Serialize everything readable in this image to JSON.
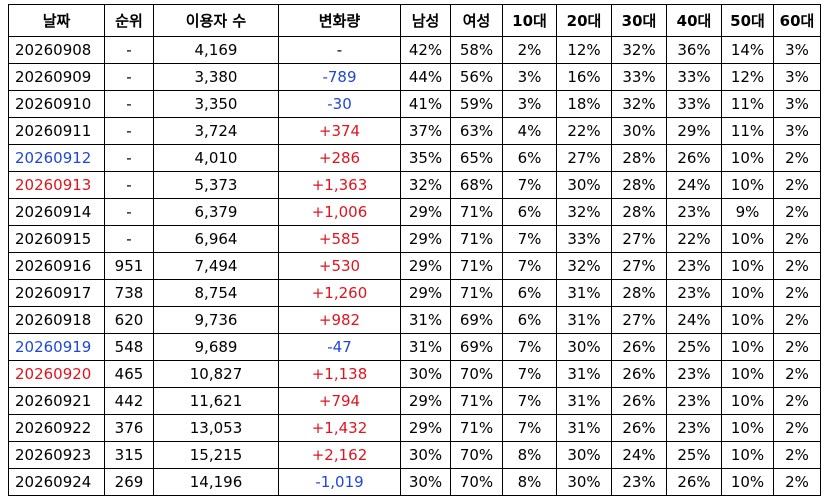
{
  "table": {
    "header": [
      "날짜",
      "순위",
      "이용자 수",
      "변화량",
      "남성",
      "여성",
      "10대",
      "20대",
      "30대",
      "40대",
      "50대",
      "60대"
    ],
    "rows": [
      [
        "20260908",
        "-",
        "4,169",
        "-",
        "42%",
        "58%",
        "2%",
        "12%",
        "32%",
        "36%",
        "14%",
        "3%"
      ],
      [
        "20260909",
        "-",
        "3,380",
        "-789",
        "44%",
        "56%",
        "3%",
        "16%",
        "33%",
        "33%",
        "12%",
        "3%"
      ],
      [
        "20260910",
        "-",
        "3,350",
        "-30",
        "41%",
        "59%",
        "3%",
        "18%",
        "32%",
        "33%",
        "11%",
        "3%"
      ],
      [
        "20260911",
        "-",
        "3,724",
        "+374",
        "37%",
        "63%",
        "4%",
        "22%",
        "30%",
        "29%",
        "11%",
        "3%"
      ],
      [
        "20260912",
        "-",
        "4,010",
        "+286",
        "35%",
        "65%",
        "6%",
        "27%",
        "28%",
        "26%",
        "10%",
        "2%"
      ],
      [
        "20260913",
        "-",
        "5,373",
        "+1,363",
        "32%",
        "68%",
        "7%",
        "30%",
        "28%",
        "24%",
        "10%",
        "2%"
      ],
      [
        "20260914",
        "-",
        "6,379",
        "+1,006",
        "29%",
        "71%",
        "6%",
        "32%",
        "28%",
        "23%",
        "9%",
        "2%"
      ],
      [
        "20260915",
        "-",
        "6,964",
        "+585",
        "29%",
        "71%",
        "7%",
        "33%",
        "27%",
        "22%",
        "10%",
        "2%"
      ],
      [
        "20260916",
        "951",
        "7,494",
        "+530",
        "29%",
        "71%",
        "7%",
        "32%",
        "27%",
        "23%",
        "10%",
        "2%"
      ],
      [
        "20260917",
        "738",
        "8,754",
        "+1,260",
        "29%",
        "71%",
        "6%",
        "31%",
        "28%",
        "23%",
        "10%",
        "2%"
      ],
      [
        "20260918",
        "620",
        "9,736",
        "+982",
        "31%",
        "69%",
        "6%",
        "31%",
        "27%",
        "24%",
        "10%",
        "2%"
      ],
      [
        "20260919",
        "548",
        "9,689",
        "-47",
        "31%",
        "69%",
        "7%",
        "30%",
        "26%",
        "25%",
        "10%",
        "2%"
      ],
      [
        "20260920",
        "465",
        "10,827",
        "+1,138",
        "30%",
        "70%",
        "7%",
        "31%",
        "26%",
        "23%",
        "10%",
        "2%"
      ],
      [
        "20260921",
        "442",
        "11,621",
        "+794",
        "29%",
        "71%",
        "7%",
        "31%",
        "26%",
        "23%",
        "10%",
        "2%"
      ],
      [
        "20260922",
        "376",
        "13,053",
        "+1,432",
        "29%",
        "71%",
        "7%",
        "31%",
        "26%",
        "23%",
        "10%",
        "2%"
      ],
      [
        "20260923",
        "315",
        "15,215",
        "+2,162",
        "30%",
        "70%",
        "8%",
        "30%",
        "24%",
        "25%",
        "10%",
        "2%"
      ],
      [
        "20260924",
        "269",
        "14,196",
        "-1,019",
        "30%",
        "70%",
        "8%",
        "30%",
        "23%",
        "26%",
        "10%",
        "2%"
      ]
    ],
    "date_colors": [
      "#000000",
      "#000000",
      "#000000",
      "#000000",
      "#1f47d8",
      "#e0141e",
      "#000000",
      "#000000",
      "#000000",
      "#000000",
      "#000000",
      "#1f47d8",
      "#e0141e",
      "#000000",
      "#000000",
      "#000000",
      "#000000"
    ]
  }
}
